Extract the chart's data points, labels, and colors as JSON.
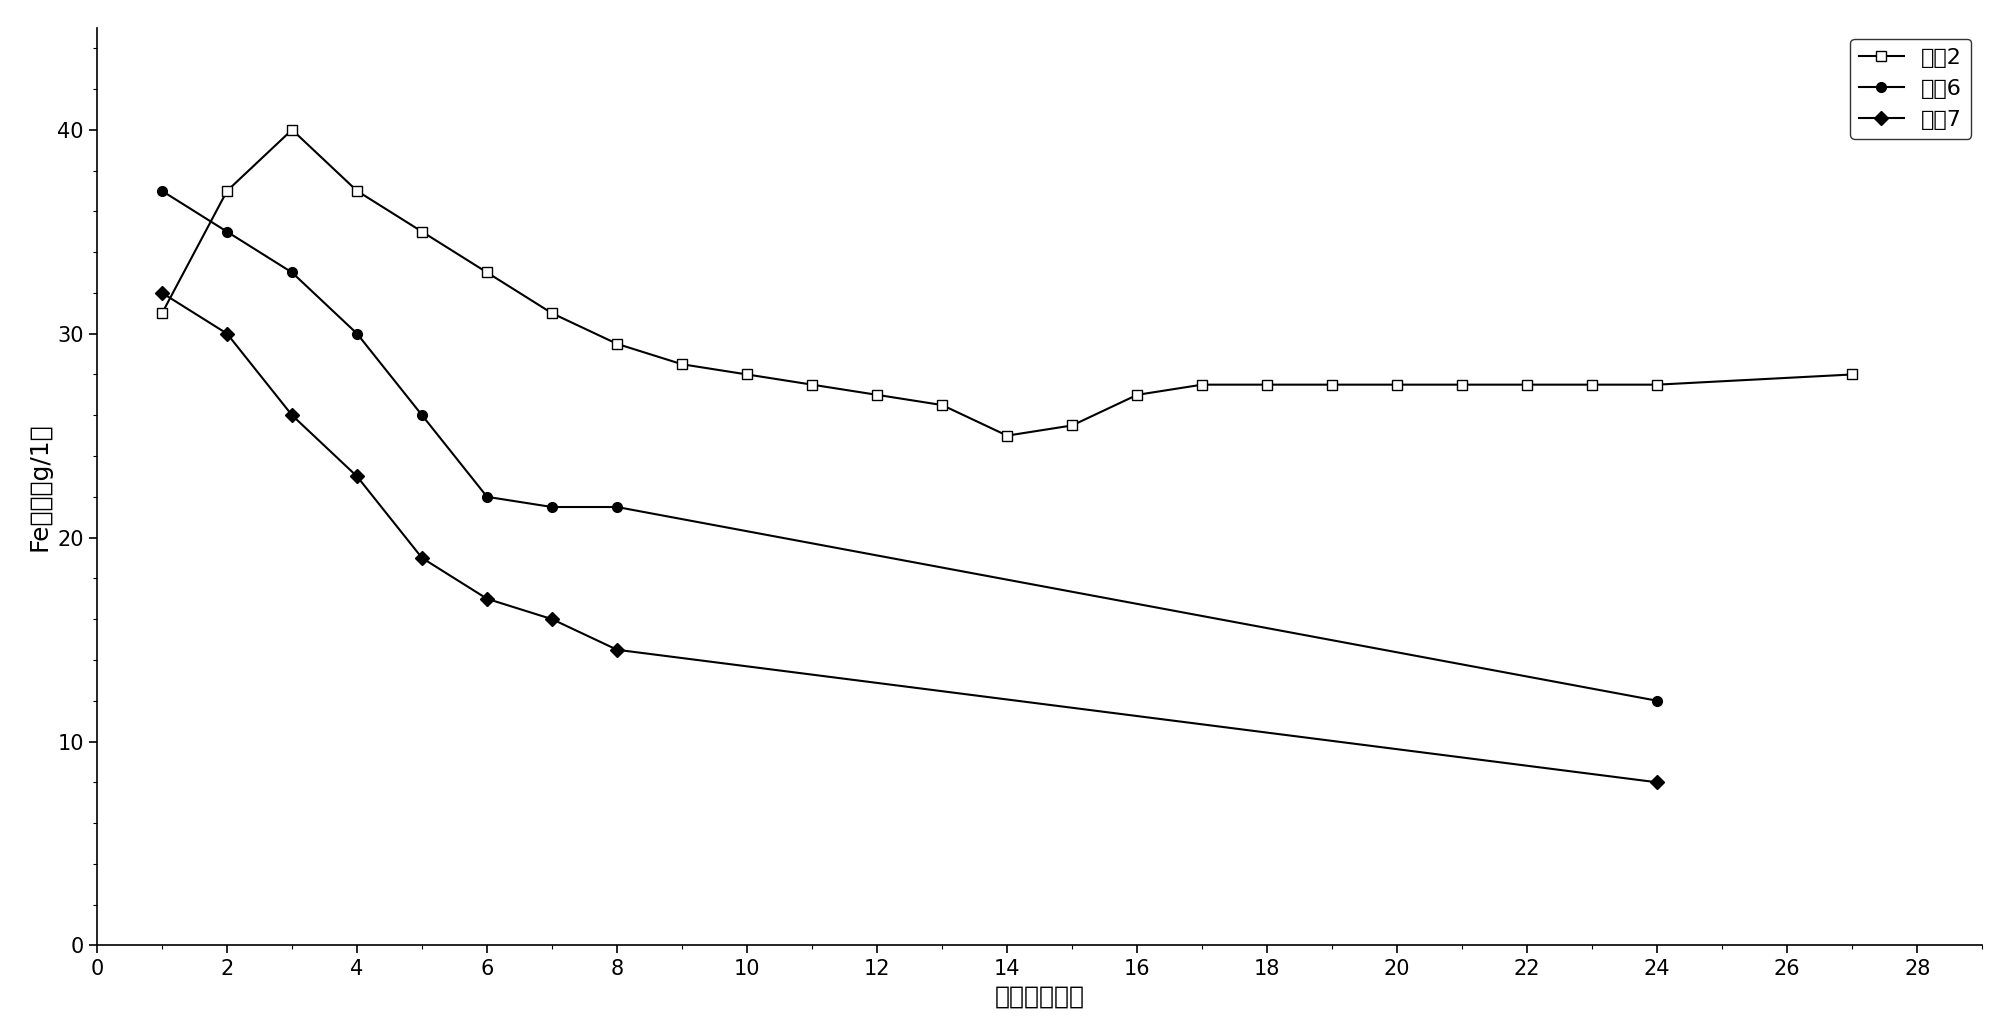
{
  "title": "",
  "xlabel": "时间（小时）",
  "ylabel": "Fe濃度（g/1）",
  "xlim": [
    0,
    29
  ],
  "ylim": [
    0,
    45
  ],
  "xticks": [
    0,
    2,
    4,
    6,
    8,
    10,
    12,
    14,
    16,
    18,
    20,
    22,
    24,
    26,
    28
  ],
  "yticks": [
    0,
    10,
    20,
    30,
    40
  ],
  "series2_x": [
    1,
    2,
    3,
    4,
    5,
    6,
    7,
    8,
    9,
    10,
    11,
    12,
    13,
    14,
    15,
    16,
    17,
    18,
    19,
    20,
    21,
    22,
    23,
    24,
    27
  ],
  "series2_y": [
    31,
    37,
    40,
    37,
    35,
    33,
    31,
    29.5,
    28.5,
    28,
    27.5,
    27,
    26.5,
    25,
    25.5,
    27,
    27.5,
    27.5,
    27.5,
    27.5,
    27.5,
    27.5,
    27.5,
    27.5,
    28
  ],
  "series6_x": [
    1,
    2,
    3,
    4,
    5,
    6,
    7,
    8,
    24
  ],
  "series6_y": [
    37,
    35,
    33,
    30,
    26,
    22,
    21.5,
    21.5,
    12
  ],
  "series7_x": [
    1,
    2,
    3,
    4,
    5,
    6,
    7,
    8,
    24
  ],
  "series7_y": [
    32,
    30,
    26,
    23,
    19,
    17,
    16,
    14.5,
    8
  ],
  "label2": "试骆2",
  "label6": "试骆6",
  "label7": "试骆7",
  "background_color": "#ffffff",
  "font_size": 16,
  "label_font_size": 18,
  "tick_font_size": 15
}
